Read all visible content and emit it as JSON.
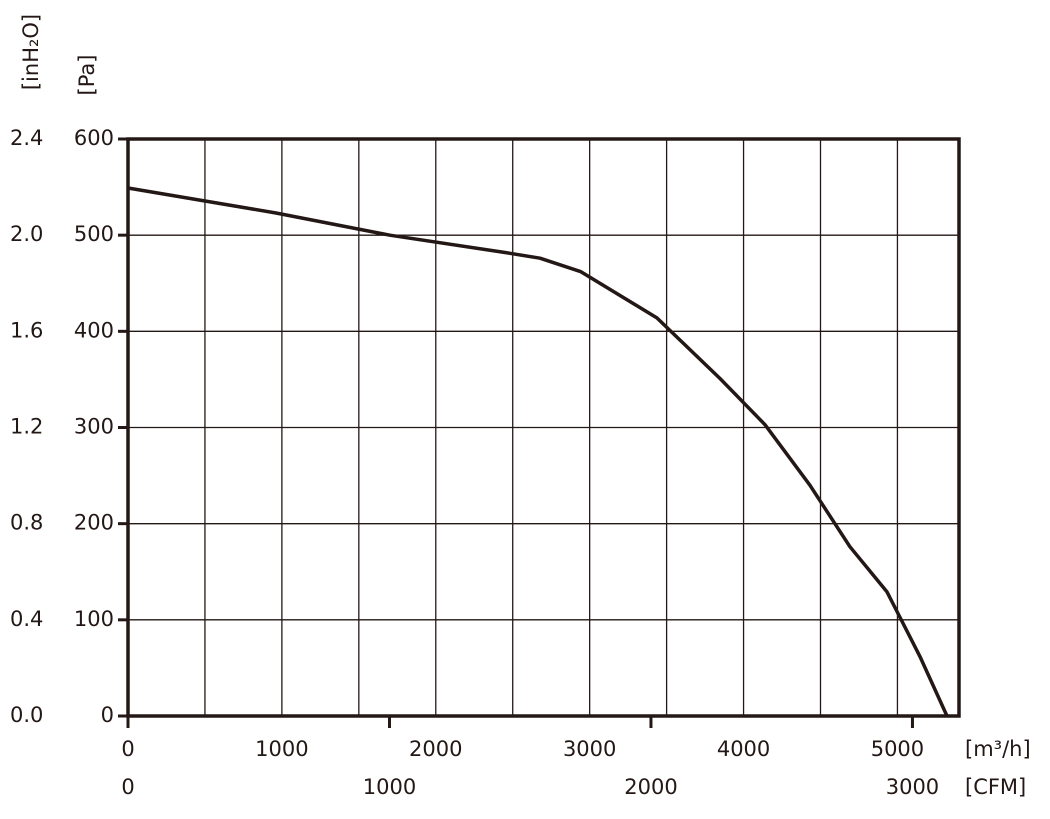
{
  "chart_data": {
    "type": "line",
    "x": [
      0,
      962,
      1702,
      2450,
      2677,
      2943,
      3437,
      3847,
      4139,
      4431,
      4691,
      4932,
      5146,
      5322
    ],
    "values": [
      549,
      523,
      500,
      482,
      476,
      462,
      414,
      351,
      303,
      240,
      176,
      129,
      62,
      0
    ],
    "color": "#231815",
    "xlim": [
      0,
      5400
    ],
    "xticks": [
      0,
      1000,
      2000,
      3000,
      4000,
      5000
    ],
    "xgrid": [
      500,
      1000,
      1500,
      2000,
      2500,
      3000,
      3500,
      4000,
      4500,
      5000
    ],
    "xlabel": "[m³/h]",
    "x2lim": [
      0,
      3178
    ],
    "x2ticks": [
      0,
      1000,
      2000,
      3000
    ],
    "x2label": "[CFM]",
    "ylim": [
      0,
      600
    ],
    "yticks": [
      0,
      100,
      200,
      300,
      400,
      500,
      600
    ],
    "ylabel": "[Pa]",
    "y2lim": [
      0,
      2.4
    ],
    "y2ticks": [
      {
        "value": 0,
        "label": "0.0"
      },
      0.4,
      0.8,
      1.2,
      1.6,
      {
        "value": 2,
        "label": "2.0"
      },
      2.4
    ],
    "y2label": "[inH₂O]",
    "grid": true
  }
}
